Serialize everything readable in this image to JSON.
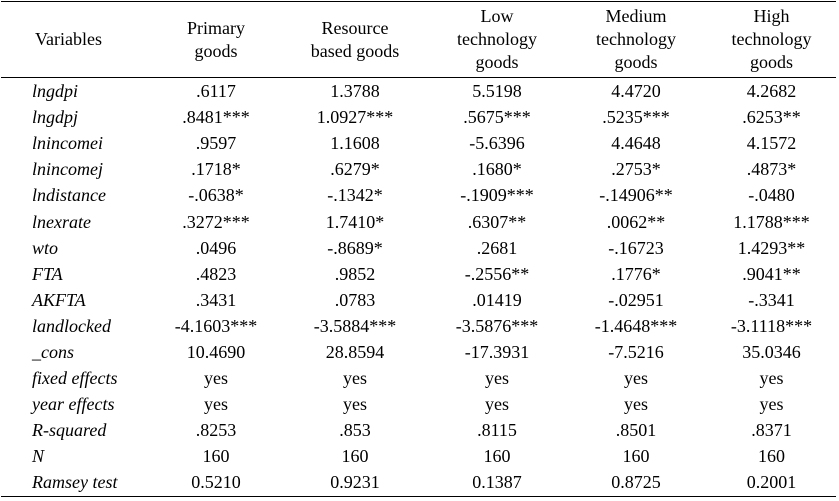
{
  "table": {
    "columns": [
      "Variables",
      "Primary goods",
      "Resource based goods",
      "Low technology goods",
      "Medium technology goods",
      "High technology goods"
    ],
    "header_lines": [
      [
        "Variables"
      ],
      [
        "Primary",
        "goods"
      ],
      [
        "Resource",
        "based goods"
      ],
      [
        "Low",
        "technology",
        "goods"
      ],
      [
        "Medium",
        "technology",
        "goods"
      ],
      [
        "High",
        "technology",
        "goods"
      ]
    ],
    "rows": [
      {
        "variable": "lngdpi",
        "values": [
          ".6117",
          "1.3788",
          "5.5198",
          "4.4720",
          "4.2682"
        ]
      },
      {
        "variable": "lngdpj",
        "values": [
          ".8481***",
          "1.0927***",
          ".5675***",
          ".5235***",
          ".6253**"
        ]
      },
      {
        "variable": "lnincomei",
        "values": [
          ".9597",
          "1.1608",
          "-5.6396",
          "4.4648",
          "4.1572"
        ]
      },
      {
        "variable": "lnincomej",
        "values": [
          ".1718*",
          ".6279*",
          ".1680*",
          ".2753*",
          ".4873*"
        ]
      },
      {
        "variable": "lndistance",
        "values": [
          "-.0638*",
          "-.1342*",
          "-.1909***",
          "-.14906**",
          "-.0480"
        ]
      },
      {
        "variable": "lnexrate",
        "values": [
          ".3272***",
          "1.7410*",
          ".6307**",
          ".0062**",
          "1.1788***"
        ]
      },
      {
        "variable": "wto",
        "values": [
          ".0496",
          "-.8689*",
          ".2681",
          "-.16723",
          "1.4293**"
        ]
      },
      {
        "variable": "FTA",
        "values": [
          ".4823",
          ".9852",
          "-.2556**",
          ".1776*",
          ".9041**"
        ]
      },
      {
        "variable": "AKFTA",
        "values": [
          ".3431",
          ".0783",
          ".01419",
          "-.02951",
          "-.3341"
        ]
      },
      {
        "variable": "landlocked",
        "values": [
          "-4.1603***",
          "-3.5884***",
          "-3.5876***",
          "-1.4648***",
          "-3.1118***"
        ]
      },
      {
        "variable": "_cons",
        "values": [
          "10.4690",
          "28.8594",
          "-17.3931",
          "-7.5216",
          "35.0346"
        ]
      },
      {
        "variable": "fixed effects",
        "values": [
          "yes",
          "yes",
          "yes",
          "yes",
          "yes"
        ]
      },
      {
        "variable": "year effects",
        "values": [
          "yes",
          "yes",
          "yes",
          "yes",
          "yes"
        ]
      },
      {
        "variable": "R-squared",
        "values": [
          ".8253",
          ".853",
          ".8115",
          ".8501",
          ".8371"
        ]
      },
      {
        "variable": "N",
        "values": [
          "160",
          "160",
          "160",
          "160",
          "160"
        ]
      },
      {
        "variable": "Ramsey test",
        "values": [
          "0.5210",
          "0.9231",
          "0.1387",
          "0.8725",
          "0.2001"
        ]
      }
    ]
  }
}
